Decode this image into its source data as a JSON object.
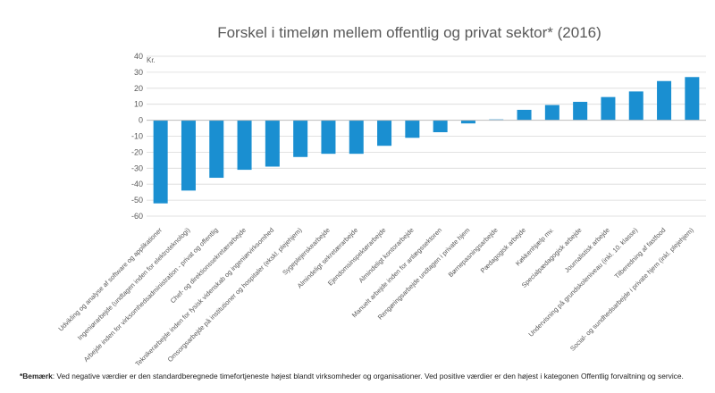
{
  "chart_data": {
    "type": "bar",
    "title": "Forskel i timeløn mellem offentlig og privat sektor* (2016)",
    "ylabel": "Kr.",
    "xlabel": "",
    "ylim": [
      -60,
      40
    ],
    "yticks": [
      40,
      30,
      20,
      10,
      0,
      -10,
      -20,
      -30,
      -40,
      -50,
      -60
    ],
    "grid": true,
    "bar_color": "#1a8fd1",
    "categories": [
      "Udvikling og analyse af software og applikationer",
      "Ingeniørarbejde (undtagen inden for elektroteknologi)",
      "Arbejde inden for virksomhedsadministration - privat og offentlig",
      "Chef- og direktionssekretærarbejde",
      "Teknikerarbejde inden for fysisk videnskab og ingeniørvirksomhed",
      "Omsorgsarbejde på institutioner og hospitaler (ekskl. plejehjem)",
      "Sygeplejerskearbejde",
      "Almindeligt sekretærarbejde",
      "Ejendomsinspektørarbejde",
      "Almindeligt kontorarbejde",
      "Manuelt arbejde inden for anlægssektoren",
      "Rengøringsarbejde undtagen i private hjem",
      "Børnepasningsarbejde",
      "Pædagogisk arbejde",
      "Køkkenhjælp mv.",
      "Specialpædagogisk arbejde",
      "Journalistisk arbejde",
      "Undervisning på grundskoleniveau (inkl. 10. klasse)",
      "Tilberedning af fastfood",
      "Social- og sundhedsarbejde i private hjem (inkl. plejehjem)"
    ],
    "values": [
      -52,
      -44,
      -36,
      -31,
      -29,
      -23,
      -21,
      -21,
      -16,
      -11,
      -7.5,
      -2,
      0.5,
      6.5,
      9.5,
      11.5,
      14.5,
      18,
      24.5,
      27
    ]
  },
  "note": {
    "label": "*Bemærk",
    "text": ": Ved negative værdier er den standardberegnede timefortjeneste højest blandt virksomheder og organisationer. Ved positive værdier er den højest i kategonen Offentlig forvaltning og service."
  }
}
